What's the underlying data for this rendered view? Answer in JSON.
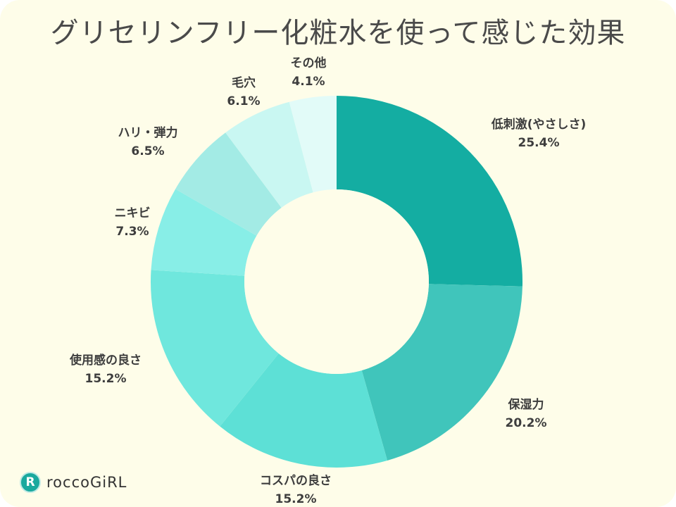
{
  "chart_data": {
    "type": "pie",
    "donut": true,
    "title": "グリセリンフリー化粧水を使って感じた効果",
    "start": "top",
    "direction": "clockwise",
    "slices": [
      {
        "label": "低刺激(やさしさ)",
        "value": 25.4,
        "display": "25.4%",
        "color": "#14ada2"
      },
      {
        "label": "保湿力",
        "value": 20.2,
        "display": "20.2%",
        "color": "#40c5bb"
      },
      {
        "label": "コスパの良さ",
        "value": 15.2,
        "display": "15.2%",
        "color": "#5de0d6"
      },
      {
        "label": "使用感の良さ",
        "value": 15.2,
        "display": "15.2%",
        "color": "#6fe7dd"
      },
      {
        "label": "ニキビ",
        "value": 7.3,
        "display": "7.3%",
        "color": "#88eee7"
      },
      {
        "label": "ハリ・弾力",
        "value": 6.5,
        "display": "6.5%",
        "color": "#a3ebe5"
      },
      {
        "label": "毛穴",
        "value": 6.1,
        "display": "6.1%",
        "color": "#c9f7f2"
      },
      {
        "label": "その他",
        "value": 4.1,
        "display": "4.1%",
        "color": "#e2fbf8"
      }
    ]
  },
  "logo": {
    "mark": "R",
    "text": "roccoGiRL",
    "color": "#1aa99e"
  },
  "background": "#fefde9"
}
